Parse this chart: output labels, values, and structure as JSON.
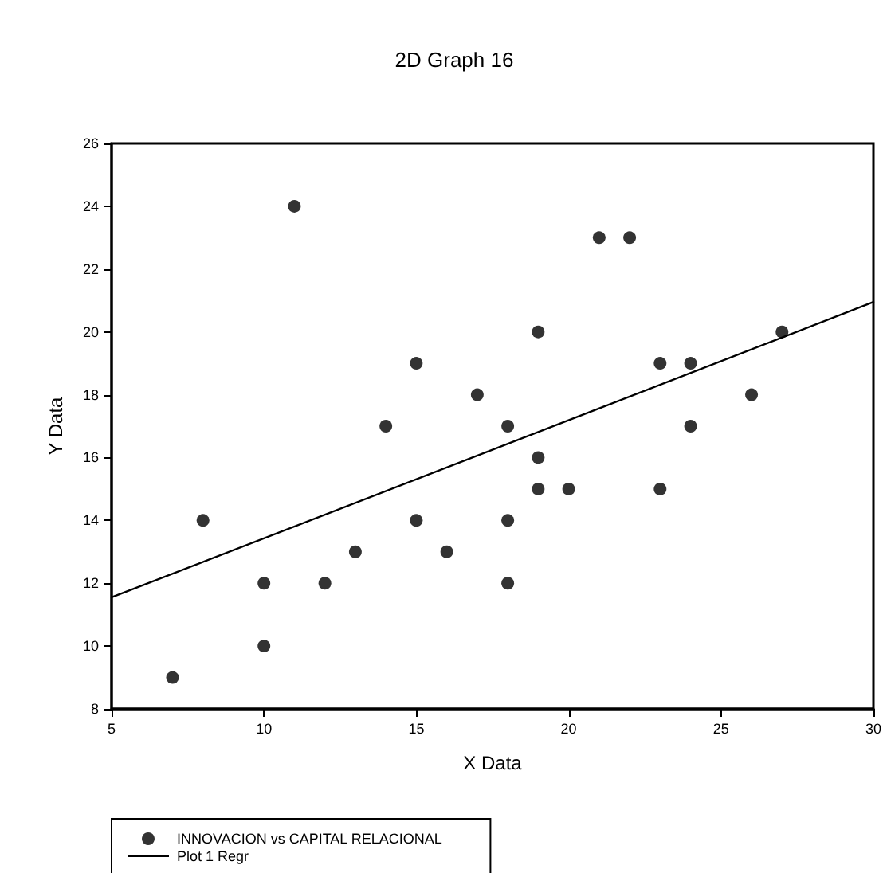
{
  "chart_data": {
    "type": "scatter",
    "title": "2D Graph 16",
    "xlabel": "X Data",
    "ylabel": "Y Data",
    "xlim": [
      5,
      30
    ],
    "xticks": [
      5,
      10,
      15,
      20,
      25,
      30
    ],
    "ylim": [
      8,
      26
    ],
    "yticks": [
      8,
      10,
      12,
      14,
      16,
      18,
      20,
      22,
      24,
      26
    ],
    "grid": false,
    "legend": "bottom",
    "series": [
      {
        "name": "INNOVACION vs CAPITAL RELACIONAL",
        "type": "scatter",
        "marker": "circle",
        "color": "#000000",
        "x": [
          7,
          8,
          10,
          10,
          11,
          12,
          13,
          14,
          15,
          15,
          16,
          17,
          18,
          18,
          18,
          19,
          19,
          19,
          20,
          21,
          22,
          23,
          23,
          24,
          24,
          26,
          27
        ],
        "values": [
          9,
          14,
          12,
          10,
          24,
          12,
          13,
          17,
          19,
          14,
          13,
          18,
          17,
          14,
          12,
          20,
          16,
          15,
          15,
          23,
          23,
          19,
          15,
          19,
          17,
          18,
          20
        ]
      },
      {
        "name": "Plot 1 Regr",
        "type": "line",
        "color": "#000000",
        "line_style": "solid",
        "x": [
          5,
          30
        ],
        "values": [
          11.55,
          20.95
        ]
      }
    ]
  }
}
